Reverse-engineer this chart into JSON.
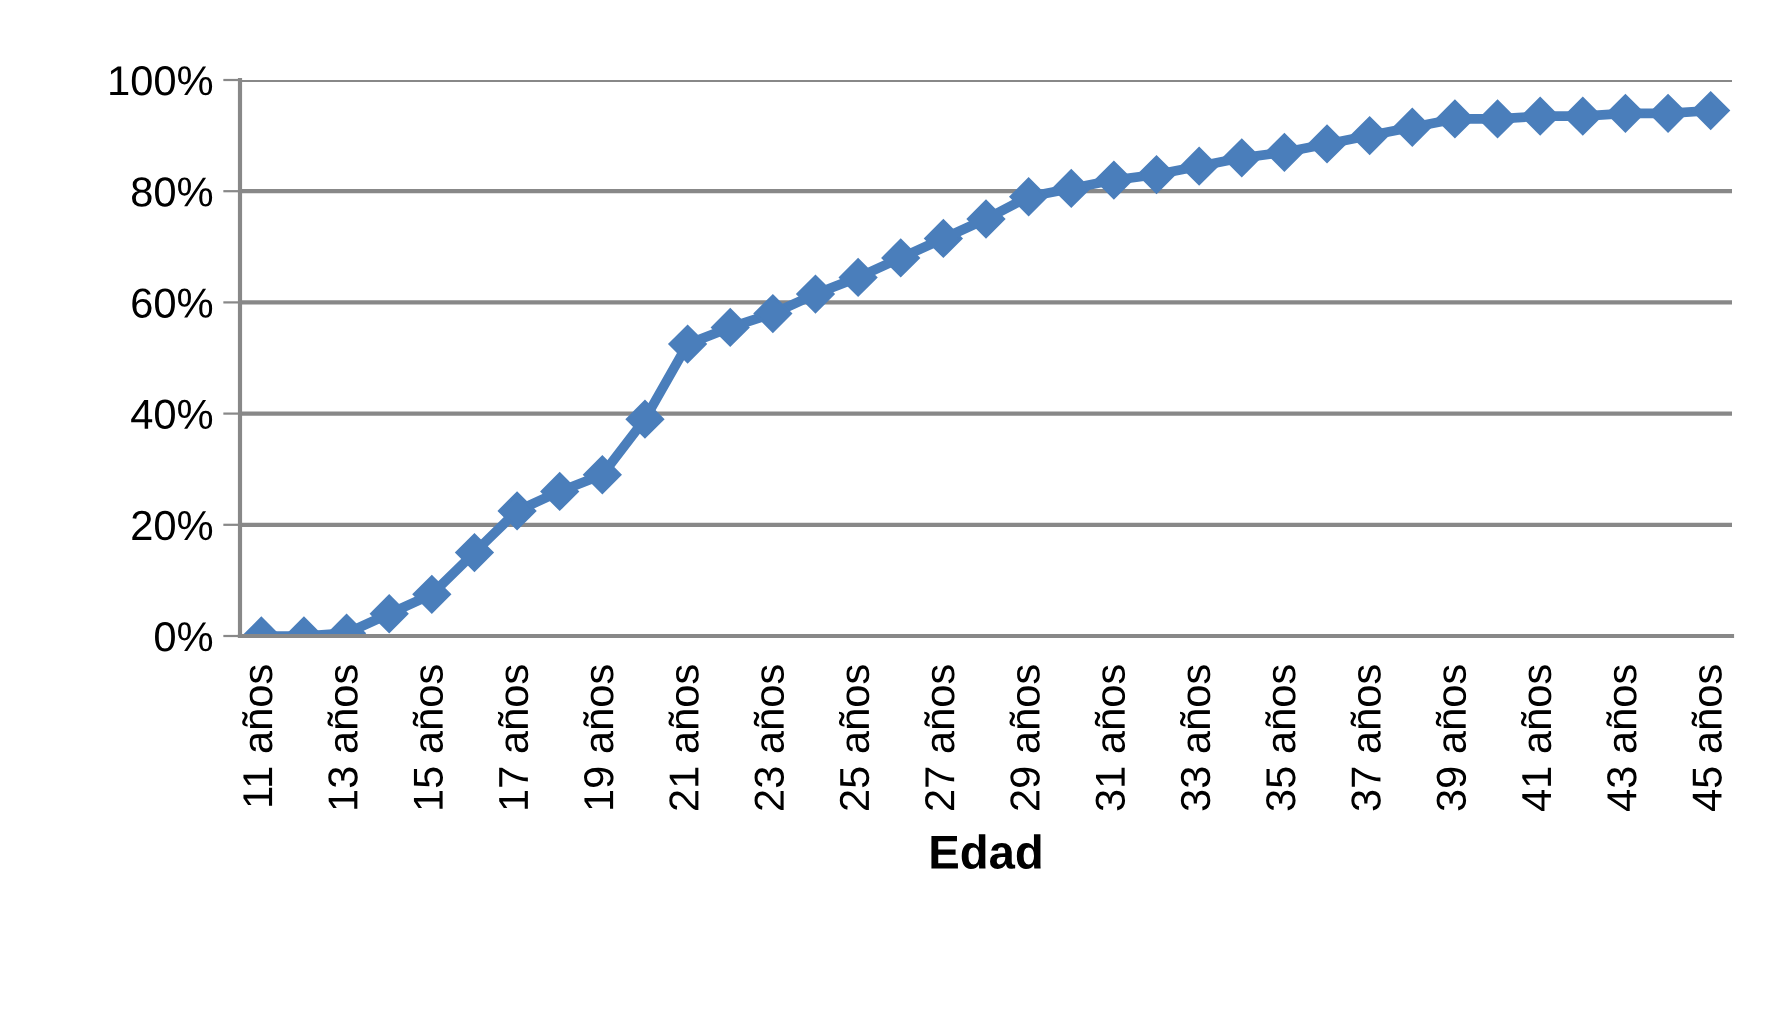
{
  "chart_data": {
    "type": "line",
    "xlabel": "Edad",
    "categories": [
      "11 años",
      null,
      "13 años",
      null,
      "15 años",
      null,
      "17 años",
      null,
      "19 años",
      null,
      "21 años",
      null,
      "23 años",
      null,
      "25 años",
      null,
      "27 años",
      null,
      "29 años",
      null,
      "31 años",
      null,
      "33 años",
      null,
      "35 años",
      null,
      "37 años",
      null,
      "39 años",
      null,
      "41 años",
      null,
      "43 años",
      null,
      "45 años"
    ],
    "series": [
      {
        "color": "#4a7ebb",
        "values": [
          0,
          0,
          0.5,
          4,
          7.5,
          15,
          22.5,
          26,
          29,
          39,
          52.5,
          55.5,
          58,
          61.5,
          64.5,
          68,
          71.5,
          75,
          79,
          80.5,
          82,
          83,
          84.5,
          86,
          87,
          88.5,
          90,
          91.5,
          93,
          93,
          93.5,
          93.5,
          94,
          94,
          94.5
        ]
      }
    ],
    "ylim": [
      0,
      100
    ],
    "yticks": [
      {
        "value": 0,
        "label": "0%"
      },
      {
        "value": 20,
        "label": "20%"
      },
      {
        "value": 40,
        "label": "40%"
      },
      {
        "value": 60,
        "label": "60%"
      },
      {
        "value": 80,
        "label": "80%"
      },
      {
        "value": 100,
        "label": "100%"
      }
    ],
    "grid": "y",
    "marker": "diamond",
    "line_style": "solid"
  }
}
